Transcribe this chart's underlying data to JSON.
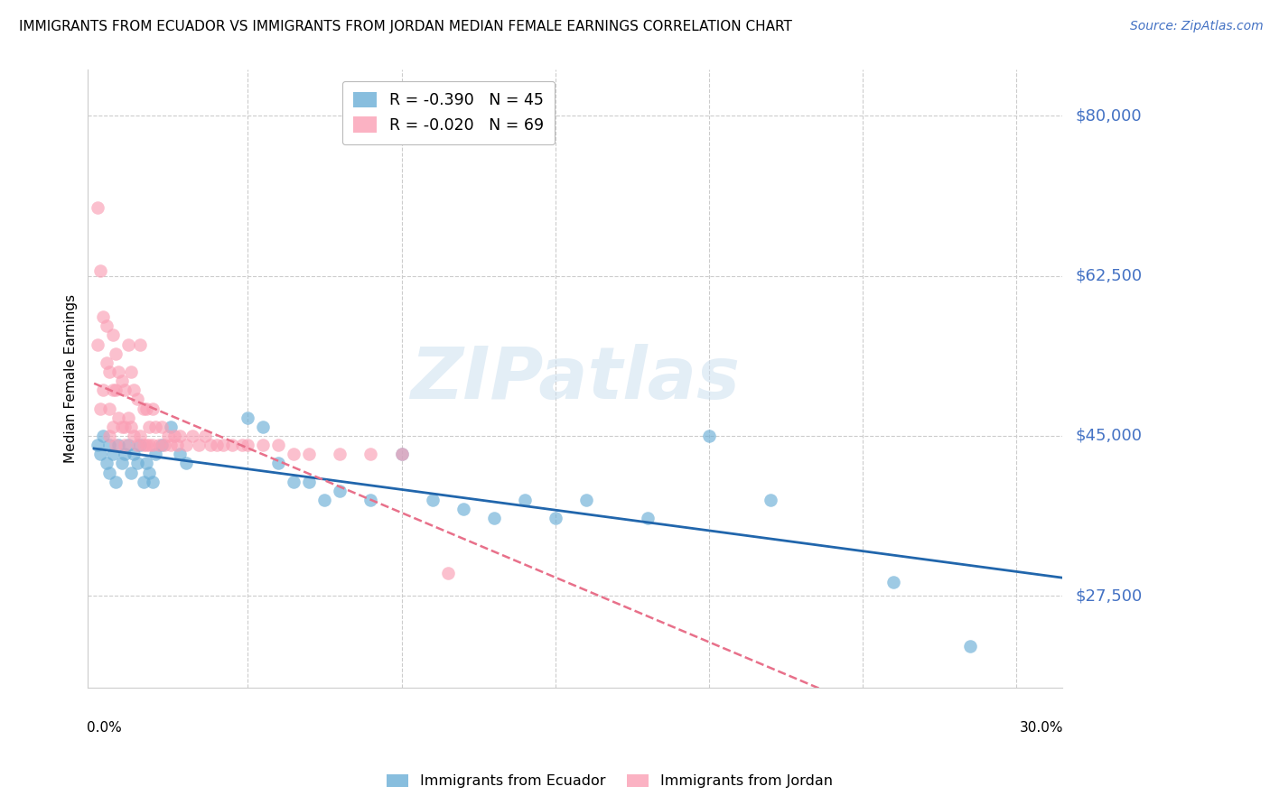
{
  "title": "IMMIGRANTS FROM ECUADOR VS IMMIGRANTS FROM JORDAN MEDIAN FEMALE EARNINGS CORRELATION CHART",
  "source": "Source: ZipAtlas.com",
  "ylabel": "Median Female Earnings",
  "ytick_labels": [
    "$27,500",
    "$45,000",
    "$62,500",
    "$80,000"
  ],
  "ytick_values": [
    27500,
    45000,
    62500,
    80000
  ],
  "ymin": 17500,
  "ymax": 85000,
  "xmin": -0.002,
  "xmax": 0.315,
  "ecuador_color": "#6baed6",
  "jordan_color": "#fa9fb5",
  "ecuador_R": -0.39,
  "ecuador_N": 45,
  "jordan_R": -0.02,
  "jordan_N": 69,
  "ecuador_line_color": "#2166ac",
  "jordan_line_color": "#e8708a",
  "watermark": "ZIPatlas",
  "ecuador_scatter_x": [
    0.001,
    0.002,
    0.003,
    0.004,
    0.005,
    0.005,
    0.006,
    0.007,
    0.008,
    0.009,
    0.01,
    0.011,
    0.012,
    0.013,
    0.014,
    0.015,
    0.016,
    0.017,
    0.018,
    0.019,
    0.02,
    0.022,
    0.025,
    0.028,
    0.03,
    0.05,
    0.055,
    0.06,
    0.065,
    0.07,
    0.075,
    0.08,
    0.09,
    0.1,
    0.11,
    0.12,
    0.13,
    0.14,
    0.15,
    0.16,
    0.18,
    0.2,
    0.22,
    0.26,
    0.285
  ],
  "ecuador_scatter_y": [
    44000,
    43000,
    45000,
    42000,
    41000,
    44000,
    43000,
    40000,
    44000,
    42000,
    43000,
    44000,
    41000,
    43000,
    42000,
    44000,
    40000,
    42000,
    41000,
    40000,
    43000,
    44000,
    46000,
    43000,
    42000,
    47000,
    46000,
    42000,
    40000,
    40000,
    38000,
    39000,
    38000,
    43000,
    38000,
    37000,
    36000,
    38000,
    36000,
    38000,
    36000,
    45000,
    38000,
    29000,
    22000
  ],
  "jordan_scatter_x": [
    0.001,
    0.001,
    0.002,
    0.002,
    0.003,
    0.003,
    0.004,
    0.004,
    0.005,
    0.005,
    0.005,
    0.006,
    0.006,
    0.006,
    0.007,
    0.007,
    0.007,
    0.008,
    0.008,
    0.009,
    0.009,
    0.01,
    0.01,
    0.01,
    0.011,
    0.011,
    0.012,
    0.012,
    0.013,
    0.013,
    0.014,
    0.014,
    0.015,
    0.015,
    0.016,
    0.016,
    0.017,
    0.017,
    0.018,
    0.018,
    0.019,
    0.019,
    0.02,
    0.021,
    0.022,
    0.023,
    0.024,
    0.025,
    0.026,
    0.027,
    0.028,
    0.03,
    0.032,
    0.034,
    0.036,
    0.038,
    0.04,
    0.042,
    0.045,
    0.048,
    0.05,
    0.055,
    0.06,
    0.065,
    0.07,
    0.08,
    0.09,
    0.1,
    0.115
  ],
  "jordan_scatter_y": [
    70000,
    55000,
    63000,
    48000,
    58000,
    50000,
    57000,
    53000,
    52000,
    48000,
    45000,
    56000,
    50000,
    46000,
    54000,
    50000,
    44000,
    52000,
    47000,
    51000,
    46000,
    50000,
    46000,
    44000,
    55000,
    47000,
    52000,
    46000,
    50000,
    45000,
    49000,
    44000,
    55000,
    45000,
    48000,
    44000,
    48000,
    44000,
    46000,
    44000,
    48000,
    44000,
    46000,
    44000,
    46000,
    44000,
    45000,
    44000,
    45000,
    44000,
    45000,
    44000,
    45000,
    44000,
    45000,
    44000,
    44000,
    44000,
    44000,
    44000,
    44000,
    44000,
    44000,
    43000,
    43000,
    43000,
    43000,
    43000,
    30000
  ]
}
